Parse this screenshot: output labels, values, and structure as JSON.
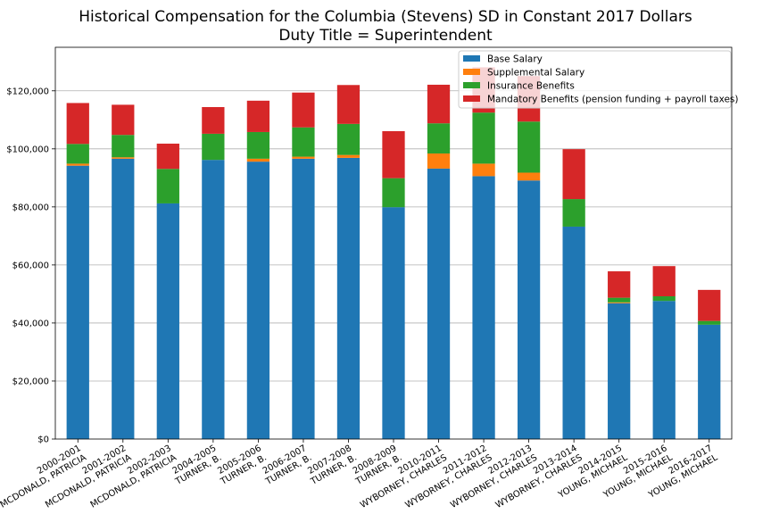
{
  "chart_data": {
    "type": "bar",
    "stacked": true,
    "title": "Historical Compensation for the Columbia (Stevens) SD in Constant 2017 Dollars",
    "subtitle": "Duty Title = Superintendent",
    "ylim": [
      0,
      135000
    ],
    "grid": "y",
    "legend_position": "top-right",
    "y_ticks": [
      "$0",
      "$20,000",
      "$40,000",
      "$60,000",
      "$80,000",
      "$100,000",
      "$120,000"
    ],
    "categories": [
      [
        "2000-2001",
        "MCDONALD, PATRICIA"
      ],
      [
        "2001-2002",
        "MCDONALD, PATRICIA"
      ],
      [
        "2002-2003",
        "MCDONALD, PATRICIA"
      ],
      [
        "2004-2005",
        "TURNER, B."
      ],
      [
        "2005-2006",
        "TURNER, B."
      ],
      [
        "2006-2007",
        "TURNER, B."
      ],
      [
        "2007-2008",
        "TURNER, B."
      ],
      [
        "2008-2009",
        "TURNER, B."
      ],
      [
        "2010-2011",
        "WYBORNEY, CHARLES"
      ],
      [
        "2011-2012",
        "WYBORNEY, CHARLES"
      ],
      [
        "2012-2013",
        "WYBORNEY, CHARLES"
      ],
      [
        "2013-2014",
        "WYBORNEY, CHARLES"
      ],
      [
        "2014-2015",
        "YOUNG, MICHAEL"
      ],
      [
        "2015-2016",
        "YOUNG, MICHAEL"
      ],
      [
        "2016-2017",
        "YOUNG, MICHAEL"
      ]
    ],
    "series": [
      {
        "name": "Base Salary",
        "color": "#1f77b4",
        "values": [
          94200,
          96600,
          81200,
          96200,
          95600,
          96600,
          96900,
          79900,
          93200,
          90600,
          89100,
          73200,
          46800,
          47600,
          39400
        ]
      },
      {
        "name": "Supplemental Salary",
        "color": "#ff7f0e",
        "values": [
          700,
          500,
          0,
          0,
          1000,
          700,
          1000,
          0,
          5200,
          4300,
          2700,
          0,
          300,
          0,
          0
        ]
      },
      {
        "name": "Insurance Benefits",
        "color": "#2ca02c",
        "values": [
          6800,
          7700,
          11900,
          9000,
          9200,
          10100,
          10700,
          10000,
          10400,
          17600,
          17600,
          9500,
          1600,
          1600,
          1300
        ]
      },
      {
        "name": "Mandatory Benefits (pension funding + payroll taxes)",
        "color": "#d62728",
        "values": [
          14100,
          10400,
          8700,
          9200,
          10800,
          12000,
          13400,
          16200,
          13300,
          15600,
          15700,
          17200,
          9100,
          10400,
          10700
        ]
      }
    ]
  }
}
